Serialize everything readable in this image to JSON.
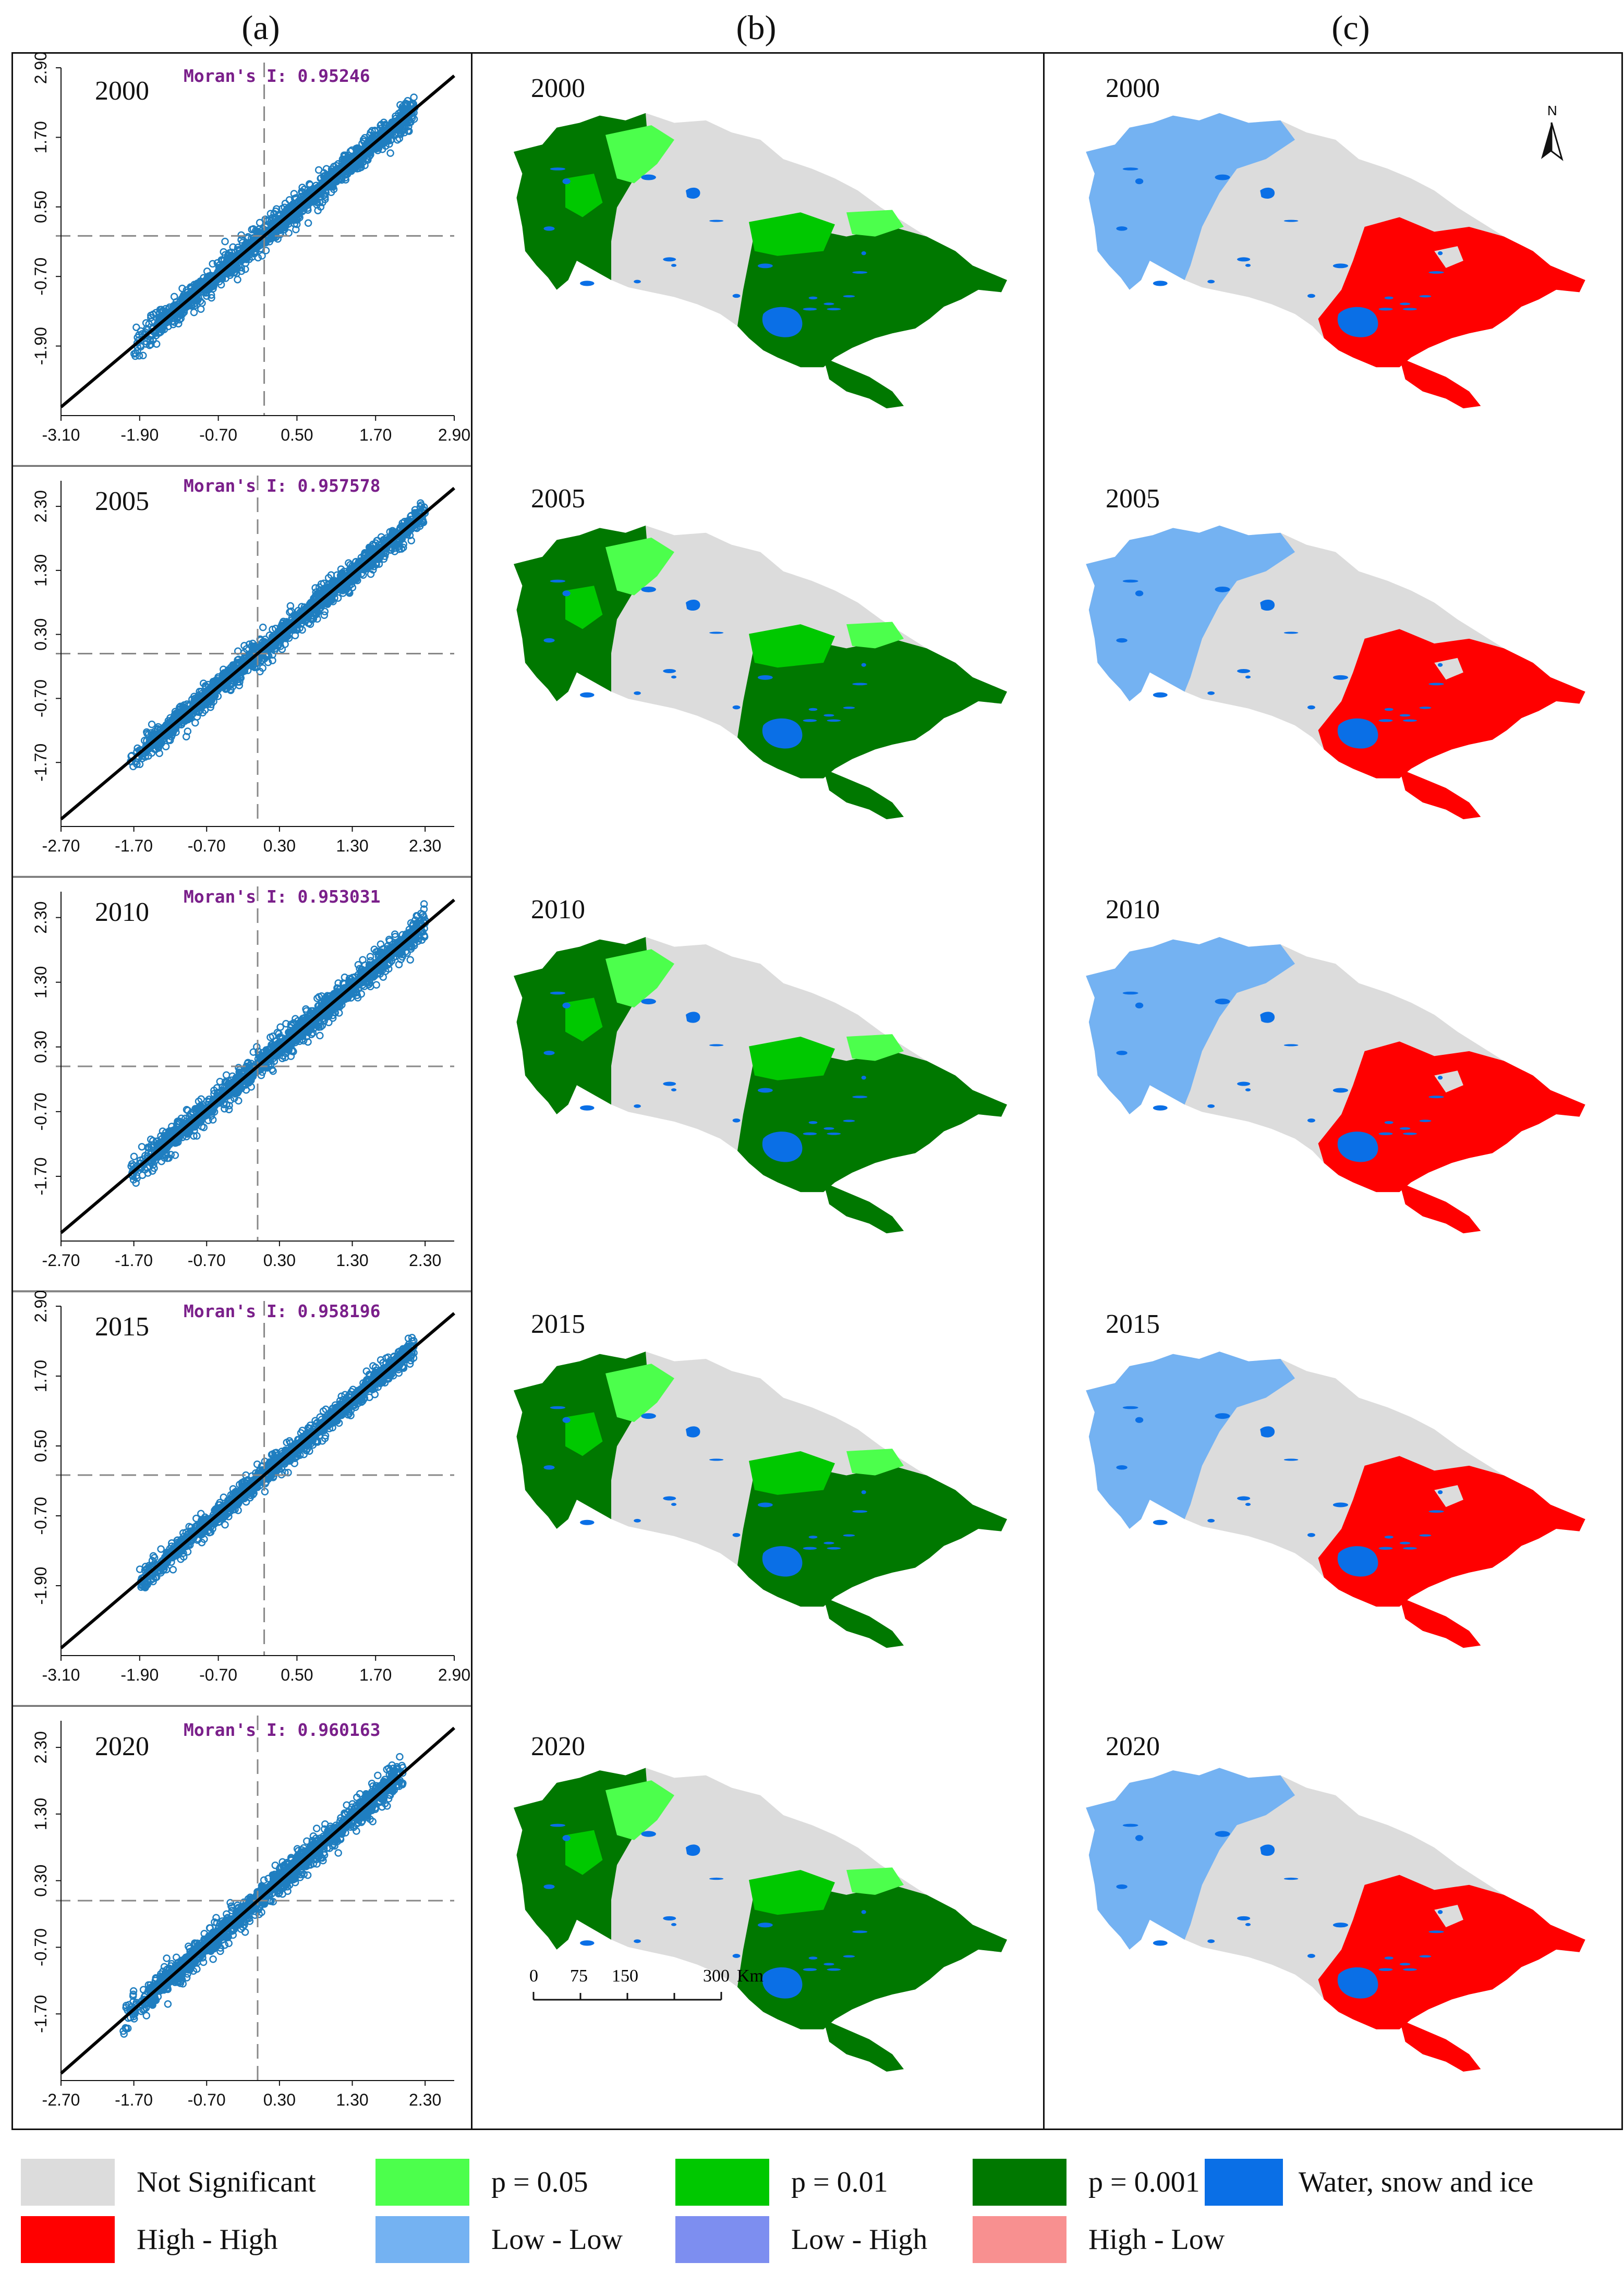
{
  "panel_labels": [
    "(a)",
    "(b)",
    "(c)"
  ],
  "years": [
    "2000",
    "2005",
    "2010",
    "2015",
    "2020"
  ],
  "chart_data": [
    {
      "type": "scatter",
      "year": "2000",
      "title": "Moran's I: 0.95246",
      "moran_i": 0.95246,
      "xlim": [
        -3.1,
        2.9
      ],
      "ylim": [
        -3.1,
        2.9
      ],
      "xticks": [
        "-3.10",
        "-1.90",
        "-0.70",
        "0.50",
        "1.70",
        "2.90"
      ],
      "yticks": [
        "-1.90",
        "-0.70",
        "0.50",
        "1.70",
        "2.90"
      ],
      "ytick_values": [
        -1.9,
        -0.7,
        0.5,
        1.7,
        2.9
      ],
      "xtick_values": [
        -3.1,
        -1.9,
        -0.7,
        0.5,
        1.7,
        2.9
      ],
      "cross": [
        0,
        0
      ],
      "cloud": {
        "xmin": -2.0,
        "xmax": 2.3,
        "spread": 0.38
      }
    },
    {
      "type": "scatter",
      "year": "2005",
      "title": "Moran's I: 0.957578",
      "moran_i": 0.957578,
      "xlim": [
        -2.7,
        2.7
      ],
      "ylim": [
        -2.7,
        2.7
      ],
      "xticks": [
        "-2.70",
        "-1.70",
        "-0.70",
        "0.30",
        "1.30",
        "2.30"
      ],
      "yticks": [
        "-1.70",
        "-0.70",
        "0.30",
        "1.30",
        "2.30"
      ],
      "ytick_values": [
        -1.7,
        -0.7,
        0.3,
        1.3,
        2.3
      ],
      "xtick_values": [
        -2.7,
        -1.7,
        -0.7,
        0.3,
        1.3,
        2.3
      ],
      "cross": [
        0,
        0
      ],
      "cloud": {
        "xmin": -1.75,
        "xmax": 2.3,
        "spread": 0.32
      }
    },
    {
      "type": "scatter",
      "year": "2010",
      "title": "Moran's I: 0.953031",
      "moran_i": 0.953031,
      "xlim": [
        -2.7,
        2.7
      ],
      "ylim": [
        -2.7,
        2.7
      ],
      "xticks": [
        "-2.70",
        "-1.70",
        "-0.70",
        "0.30",
        "1.30",
        "2.30"
      ],
      "yticks": [
        "-1.70",
        "-0.70",
        "0.30",
        "1.30",
        "2.30"
      ],
      "ytick_values": [
        -1.7,
        -0.7,
        0.3,
        1.3,
        2.3
      ],
      "xtick_values": [
        -2.7,
        -1.7,
        -0.7,
        0.3,
        1.3,
        2.3
      ],
      "cross": [
        0,
        0
      ],
      "cloud": {
        "xmin": -1.75,
        "xmax": 2.3,
        "spread": 0.34
      }
    },
    {
      "type": "scatter",
      "year": "2015",
      "title": "Moran's I: 0.958196",
      "moran_i": 0.958196,
      "xlim": [
        -3.1,
        2.9
      ],
      "ylim": [
        -3.1,
        2.9
      ],
      "xticks": [
        "-3.10",
        "-1.90",
        "-0.70",
        "0.50",
        "1.70",
        "2.90"
      ],
      "yticks": [
        "-1.90",
        "-0.70",
        "0.50",
        "1.70",
        "2.90"
      ],
      "ytick_values": [
        -1.9,
        -0.7,
        0.5,
        1.7,
        2.9
      ],
      "xtick_values": [
        -3.1,
        -1.9,
        -0.7,
        0.5,
        1.7,
        2.9
      ],
      "cross": [
        0,
        0
      ],
      "cloud": {
        "xmin": -1.9,
        "xmax": 2.3,
        "spread": 0.3
      }
    },
    {
      "type": "scatter",
      "year": "2020",
      "title": "Moran's I: 0.960163",
      "moran_i": 0.960163,
      "xlim": [
        -2.7,
        2.7
      ],
      "ylim": [
        -2.7,
        2.7
      ],
      "xticks": [
        "-2.70",
        "-1.70",
        "-0.70",
        "0.30",
        "1.30",
        "2.30"
      ],
      "yticks": [
        "-1.70",
        "-0.70",
        "0.30",
        "1.30",
        "2.30"
      ],
      "ytick_values": [
        -1.7,
        -0.7,
        0.3,
        1.3,
        2.3
      ],
      "xtick_values": [
        -2.7,
        -1.7,
        -0.7,
        0.3,
        1.3,
        2.3
      ],
      "cross": [
        0,
        0
      ],
      "cloud": {
        "xmin": -1.85,
        "xmax": 2.0,
        "spread": 0.34
      }
    }
  ],
  "maps": {
    "north_label": "N",
    "scale": {
      "ticks": [
        "0",
        "75",
        "150",
        "300"
      ],
      "unit": "Km"
    }
  },
  "legend": [
    {
      "label": "Not Significant",
      "color": "#dcdcdc"
    },
    {
      "label": "p = 0.05",
      "color": "#4cff4c"
    },
    {
      "label": "p = 0.01",
      "color": "#00c800"
    },
    {
      "label": "p = 0.001",
      "color": "#007800"
    },
    {
      "label": "Water, snow and ice",
      "color": "#0a6fe6"
    },
    {
      "label": "High - High",
      "color": "#ff0000"
    },
    {
      "label": "Low - Low",
      "color": "#74b2f2"
    },
    {
      "label": "Low - High",
      "color": "#7d8ef0"
    },
    {
      "label": "High - Low",
      "color": "#f89090"
    }
  ],
  "colors": {
    "scatter": "#1f7ec0",
    "fit_line": "#000000",
    "cross": "#888888",
    "not_sig": "#dcdcdc",
    "p05": "#4cff4c",
    "p01": "#00c800",
    "p001": "#007800",
    "water": "#0a6fe6",
    "hh": "#ff0000",
    "ll": "#74b2f2"
  }
}
